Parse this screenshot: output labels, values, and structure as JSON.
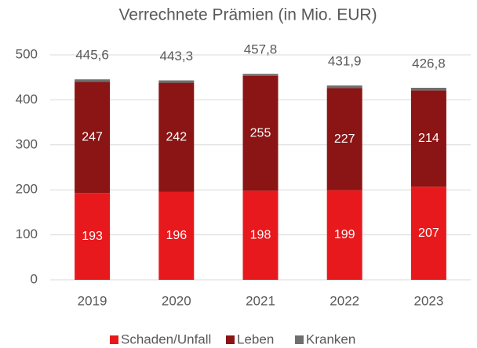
{
  "chart_data": {
    "type": "stacked_bar",
    "title": "Verrechnete Prämien (in Mio. EUR)",
    "categories": [
      "2019",
      "2020",
      "2021",
      "2022",
      "2023"
    ],
    "series": [
      {
        "name": "Schaden/Unfall",
        "color": "#e8191c",
        "values": [
          193,
          196,
          198,
          199,
          207
        ]
      },
      {
        "name": "Leben",
        "color": "#8b1414",
        "values": [
          247,
          242,
          255,
          227,
          214
        ]
      },
      {
        "name": "Kranken",
        "color": "#6e6e6e",
        "values": [
          5.6,
          5.3,
          4.8,
          5.9,
          5.8
        ]
      }
    ],
    "totals": [
      445.6,
      443.3,
      457.8,
      431.9,
      426.8
    ],
    "total_labels": [
      "445,6",
      "443,3",
      "457,8",
      "431,9",
      "426,8"
    ],
    "ylim": [
      0,
      500
    ],
    "yticks": [
      0,
      100,
      200,
      300,
      400,
      500
    ],
    "grid": true,
    "legend": "bottom"
  }
}
